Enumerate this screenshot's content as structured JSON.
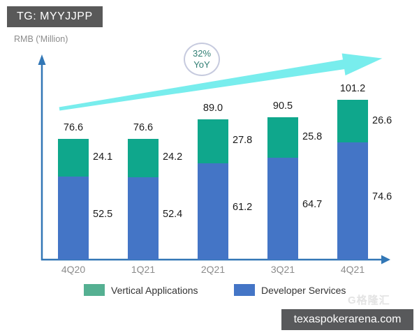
{
  "badge": {
    "text": "TG: MYYJJPP"
  },
  "y_axis_label": "RMB ('Million)",
  "annotation": {
    "percent": "32%",
    "period": "YoY"
  },
  "legend": {
    "items": [
      {
        "label": "Vertical Applications",
        "color": "#55b092"
      },
      {
        "label": "Developer Services",
        "color": "#4475c6"
      }
    ]
  },
  "watermark": {
    "logo": "G格隆汇",
    "site": "texaspokerarena.com"
  },
  "colors": {
    "bar_green": "#0fa78c",
    "bar_blue": "#4475c6",
    "axis_blue": "#3277b6",
    "growth_arrow": "#78eded",
    "badge_bg": "#595959",
    "annotation_text": "#2f7d72"
  },
  "chart_data": {
    "type": "bar",
    "stacked": true,
    "title": "",
    "xlabel": "",
    "ylabel": "RMB ('Million)",
    "categories": [
      "4Q20",
      "1Q21",
      "2Q21",
      "3Q21",
      "4Q21"
    ],
    "series": [
      {
        "name": "Developer Services",
        "color": "#4475c6",
        "values": [
          52.5,
          52.4,
          61.2,
          64.7,
          74.6
        ],
        "labels": [
          "52.5",
          "52.4",
          "61.2",
          "64.7",
          "74.6"
        ]
      },
      {
        "name": "Vertical Applications",
        "color": "#0fa78c",
        "values": [
          24.1,
          24.2,
          27.8,
          25.8,
          26.6
        ],
        "labels": [
          "24.1",
          "24.2",
          "27.8",
          "25.8",
          "26.6"
        ]
      }
    ],
    "totals": [
      76.6,
      76.6,
      89.0,
      90.5,
      101.2
    ],
    "total_labels": [
      "76.6",
      "76.6",
      "89.0",
      "90.5",
      "101.2"
    ],
    "annotation": "32% YoY",
    "ylim": [
      0,
      110
    ],
    "grid": false,
    "legend_position": "bottom"
  }
}
